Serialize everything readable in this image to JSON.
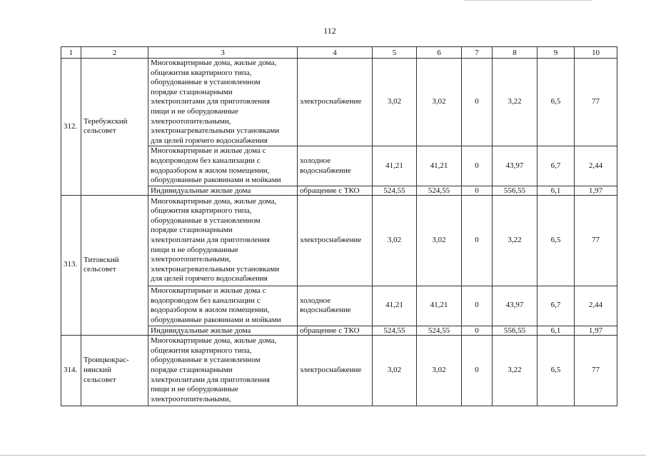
{
  "page_number": "112",
  "header": [
    "1",
    "2",
    "3",
    "4",
    "5",
    "6",
    "7",
    "8",
    "9",
    "10"
  ],
  "groups": [
    {
      "num": "312.",
      "name": "Теребужский\nсельсовет",
      "rows": [
        {
          "desc": "Многоквартирные дома, жилые дома,\nобщежития квартирного типа,\nоборудованные в установленном\nпорядке стационарными\nэлектроплитами для приготовления\nпищи и не оборудованные\nэлектроотопительными,\nэлектронагревательными установками\nдля целей горячего водоснабжения",
          "service": "электроснабжение",
          "c5": "3,02",
          "c6": "3,02",
          "c7": "0",
          "c8": "3,22",
          "c9": "6,5",
          "c10": "77"
        },
        {
          "desc": "Многоквартирные и жилые дома с\nводопроводом без канализации с\nводоразбором в жилом помещении,\nоборудованные раковинами и мойками",
          "service": "холодное\nводоснабжение",
          "c5": "41,21",
          "c6": "41,21",
          "c7": "0",
          "c8": "43,97",
          "c9": "6,7",
          "c10": "2,44"
        },
        {
          "desc": "Индивидуальные жилые дома",
          "service": "обращение с ТКО",
          "c5": "524,55",
          "c6": "524,55",
          "c7": "0",
          "c8": "556,55",
          "c9": "6,1",
          "c10": "1,97"
        }
      ]
    },
    {
      "num": "313.",
      "name": "Титовский\nсельсовет",
      "rows": [
        {
          "desc": "Многоквартирные дома, жилые дома,\nобщежития квартирного типа,\nоборудованные в установленном\nпорядке стационарными\nэлектроплитами для приготовления\nпищи и не оборудованные\nэлектроотопительными,\nэлектронагревательными установками\nдля целей горячего водоснабжения",
          "service": "электроснабжение",
          "c5": "3,02",
          "c6": "3,02",
          "c7": "0",
          "c8": "3,22",
          "c9": "6,5",
          "c10": "77"
        },
        {
          "desc": "Многоквартирные и жилые дома с\nводопроводом без канализации с\nводоразбором в жилом помещении,\nоборудованные раковинами и мойками",
          "service": "холодное\nводоснабжение",
          "c5": "41,21",
          "c6": "41,21",
          "c7": "0",
          "c8": "43,97",
          "c9": "6,7",
          "c10": "2,44"
        },
        {
          "desc": "Индивидуальные жилые дома",
          "service": "обращение с ТКО",
          "c5": "524,55",
          "c6": "524,55",
          "c7": "0",
          "c8": "556,55",
          "c9": "6,1",
          "c10": "1,97"
        }
      ]
    },
    {
      "num": "314.",
      "name": "Троицкокрас-\nнянский\nсельсовет",
      "rows": [
        {
          "desc": "Многоквартирные дома, жилые дома,\nобщежития квартирного типа,\nоборудованные в установленном\nпорядке стационарными\nэлектроплитами для приготовления\nпищи и не оборудованные\nэлектроотопительными,",
          "service": "электроснабжение",
          "c5": "3,02",
          "c6": "3,02",
          "c7": "0",
          "c8": "3,22",
          "c9": "6,5",
          "c10": "77"
        }
      ]
    }
  ]
}
